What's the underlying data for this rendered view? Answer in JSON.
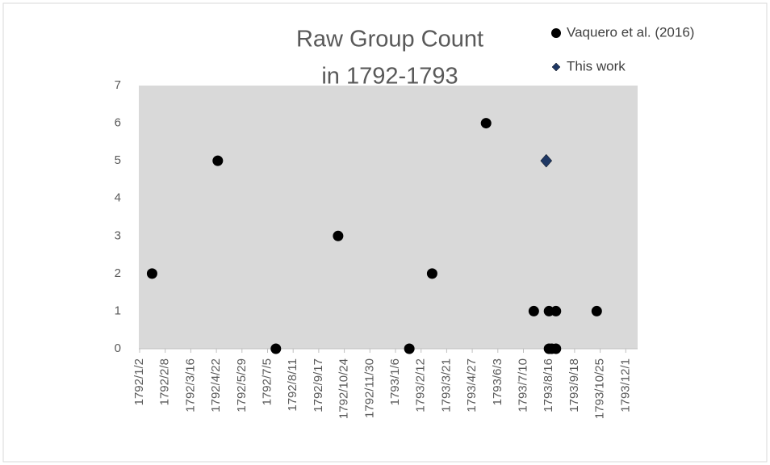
{
  "chart_data": {
    "type": "scatter",
    "title_lines": [
      "Raw Group Count",
      "in 1792-1793"
    ],
    "series": [
      {
        "name": "Vaquero et al. (2016)",
        "color": "#000000",
        "marker": "circle",
        "x": [
          18,
          113,
          197,
          287,
          390,
          423,
          501,
          570,
          592,
          602,
          592,
          596,
          602,
          661
        ],
        "values": [
          2,
          5,
          0,
          3,
          0,
          2,
          6,
          1,
          1,
          1,
          0,
          0,
          0,
          1
        ]
      },
      {
        "name": "This work",
        "color": "#1f3864",
        "marker": "diamond",
        "x": [
          588
        ],
        "values": [
          5
        ]
      }
    ],
    "xlim": [
      0,
      720
    ],
    "xticks": [
      {
        "value": 0,
        "label": "1792/1/2"
      },
      {
        "value": 37,
        "label": "1792/2/8"
      },
      {
        "value": 74,
        "label": "1792/3/16"
      },
      {
        "value": 111,
        "label": "1792/4/22"
      },
      {
        "value": 148,
        "label": "1792/5/29"
      },
      {
        "value": 185,
        "label": "1792/7/5"
      },
      {
        "value": 222,
        "label": "1792/8/11"
      },
      {
        "value": 259,
        "label": "1792/9/17"
      },
      {
        "value": 296,
        "label": "1792/10/24"
      },
      {
        "value": 333,
        "label": "1792/11/30"
      },
      {
        "value": 370,
        "label": "1793/1/6"
      },
      {
        "value": 407,
        "label": "1793/2/12"
      },
      {
        "value": 444,
        "label": "1793/3/21"
      },
      {
        "value": 481,
        "label": "1793/4/27"
      },
      {
        "value": 518,
        "label": "1793/6/3"
      },
      {
        "value": 555,
        "label": "1793/7/10"
      },
      {
        "value": 592,
        "label": "1793/8/16"
      },
      {
        "value": 629,
        "label": "1793/9/18"
      },
      {
        "value": 666,
        "label": "1793/10/25"
      },
      {
        "value": 703,
        "label": "1793/12/1"
      }
    ],
    "ylim": [
      0,
      7
    ],
    "yticks": [
      0,
      1,
      2,
      3,
      4,
      5,
      6,
      7
    ]
  }
}
